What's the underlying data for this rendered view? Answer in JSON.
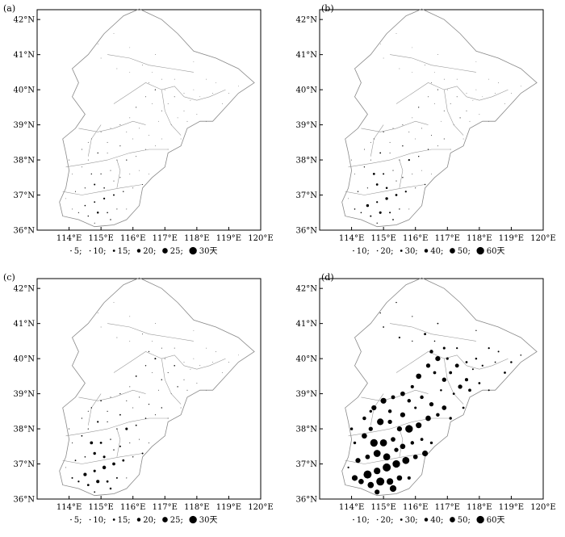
{
  "panels": [
    {
      "label": "(a)",
      "lat_ticks": [
        "42°N",
        "41°N",
        "40°N",
        "39°N",
        "38°N",
        "37°N",
        "36°N"
      ],
      "lon_ticks": [
        "114°E",
        "115°E",
        "116°E",
        "117°E",
        "118°E",
        "119°E",
        "120°E"
      ],
      "legend": [
        {
          "value": 5,
          "text": "5;"
        },
        {
          "value": 10,
          "text": "10;"
        },
        {
          "value": 15,
          "text": "15;"
        },
        {
          "value": 20,
          "text": "20;"
        },
        {
          "value": 25,
          "text": "25;"
        },
        {
          "value": 30,
          "text": "30天"
        }
      ]
    },
    {
      "label": "(b)",
      "lat_ticks": [
        "42°N",
        "41°N",
        "40°N",
        "39°N",
        "38°N",
        "37°N",
        "36°N"
      ],
      "lon_ticks": [
        "114°E",
        "115°E",
        "116°E",
        "117°E",
        "118°E",
        "119°E",
        "120°E"
      ],
      "legend": [
        {
          "value": 10,
          "text": "10;"
        },
        {
          "value": 20,
          "text": "20;"
        },
        {
          "value": 30,
          "text": "30;"
        },
        {
          "value": 40,
          "text": "40;"
        },
        {
          "value": 50,
          "text": "50;"
        },
        {
          "value": 60,
          "text": "60天"
        }
      ]
    },
    {
      "label": "(c)",
      "lat_ticks": [
        "42°N",
        "41°N",
        "40°N",
        "39°N",
        "38°N",
        "37°N",
        "36°N"
      ],
      "lon_ticks": [
        "114°E",
        "115°E",
        "116°E",
        "117°E",
        "118°E",
        "119°E",
        "120°E"
      ],
      "legend": [
        {
          "value": 5,
          "text": "5;"
        },
        {
          "value": 10,
          "text": "10;"
        },
        {
          "value": 15,
          "text": "15;"
        },
        {
          "value": 20,
          "text": "20;"
        },
        {
          "value": 25,
          "text": "25;"
        },
        {
          "value": 30,
          "text": "30天"
        }
      ]
    },
    {
      "label": "(d)",
      "lat_ticks": [
        "42°N",
        "41°N",
        "40°N",
        "39°N",
        "38°N",
        "37°N",
        "36°N"
      ],
      "lon_ticks": [
        "114°E",
        "115°E",
        "116°E",
        "117°E",
        "118°E",
        "119°E",
        "120°E"
      ],
      "legend": [
        {
          "value": 10,
          "text": "10;"
        },
        {
          "value": 20,
          "text": "20;"
        },
        {
          "value": 30,
          "text": "30;"
        },
        {
          "value": 40,
          "text": "40;"
        },
        {
          "value": 50,
          "text": "50;"
        },
        {
          "value": 60,
          "text": "60天"
        }
      ]
    }
  ]
}
